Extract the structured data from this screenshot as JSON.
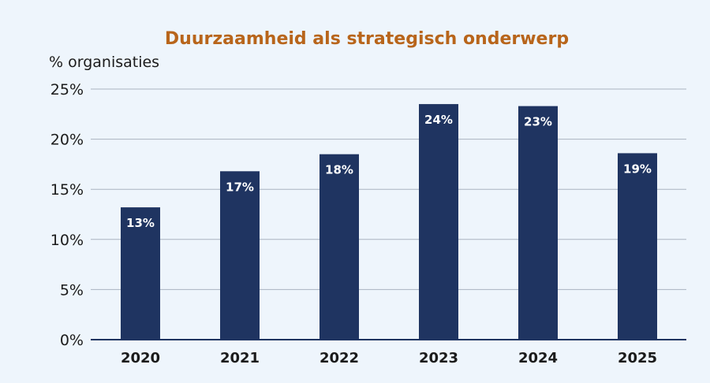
{
  "chart_data": {
    "type": "bar",
    "title": "Duurzaamheid als strategisch onderwerp",
    "ylabel": "% organisaties",
    "xlabel": "",
    "categories": [
      "2020",
      "2021",
      "2022",
      "2023",
      "2024",
      "2025"
    ],
    "values": [
      13.2,
      16.8,
      18.5,
      23.5,
      23.3,
      18.6
    ],
    "value_labels": [
      "13%",
      "17%",
      "18%",
      "24%",
      "23%",
      "19%"
    ],
    "ylim": [
      0,
      25
    ],
    "yticks": [
      0,
      5,
      10,
      15,
      20,
      25
    ],
    "ytick_labels": [
      "0%",
      "5%",
      "10%",
      "15%",
      "20%",
      "25%"
    ],
    "grid": true,
    "legend": "none",
    "colors": {
      "bar": "#1f3461",
      "title": "#b8651b",
      "grid": "#aab4c0",
      "axis": "#1f3461",
      "background": "#eef5fc"
    }
  }
}
